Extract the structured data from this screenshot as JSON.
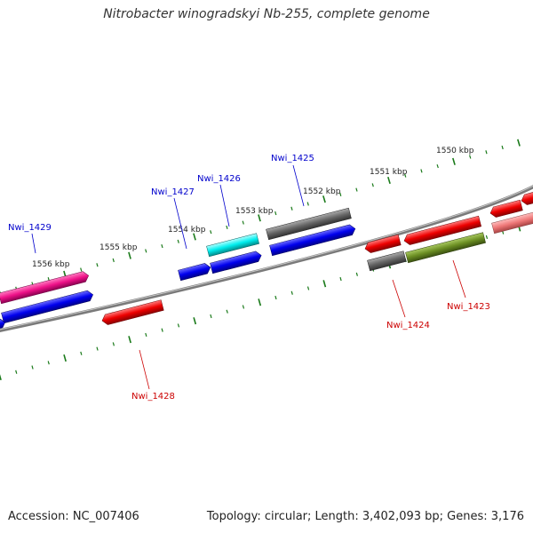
{
  "title": "Nitrobacter winogradskyi Nb-255, complete genome",
  "footer": {
    "accession": "Accession: NC_007406",
    "summary": "Topology: circular; Length: 3,402,093 bp; Genes: 3,176"
  },
  "colors": {
    "background": "#ffffff",
    "backbone": "#808080",
    "tick": "#1a7a1a",
    "forward_label": "#0000cc",
    "reverse_label": "#cc0000",
    "blue": "#0000ee",
    "red": "#ee0000",
    "magenta": "#ee1188",
    "cyan": "#00eeee",
    "gray": "#666666",
    "olive": "#6b8e23",
    "pink": "#ee7777"
  },
  "scale": {
    "labels": [
      "1550 kbp",
      "1551 kbp",
      "1552 kbp",
      "1553 kbp",
      "1554 kbp",
      "1555 kbp",
      "1556 kbp"
    ]
  },
  "genes": [
    {
      "name": "Nwi_1425",
      "strand": "forward"
    },
    {
      "name": "Nwi_1426",
      "strand": "forward"
    },
    {
      "name": "Nwi_1427",
      "strand": "forward"
    },
    {
      "name": "Nwi_1429",
      "strand": "forward"
    },
    {
      "name": "Nwi_1428",
      "strand": "reverse"
    },
    {
      "name": "Nwi_1424",
      "strand": "reverse"
    },
    {
      "name": "Nwi_1423",
      "strand": "reverse"
    }
  ]
}
